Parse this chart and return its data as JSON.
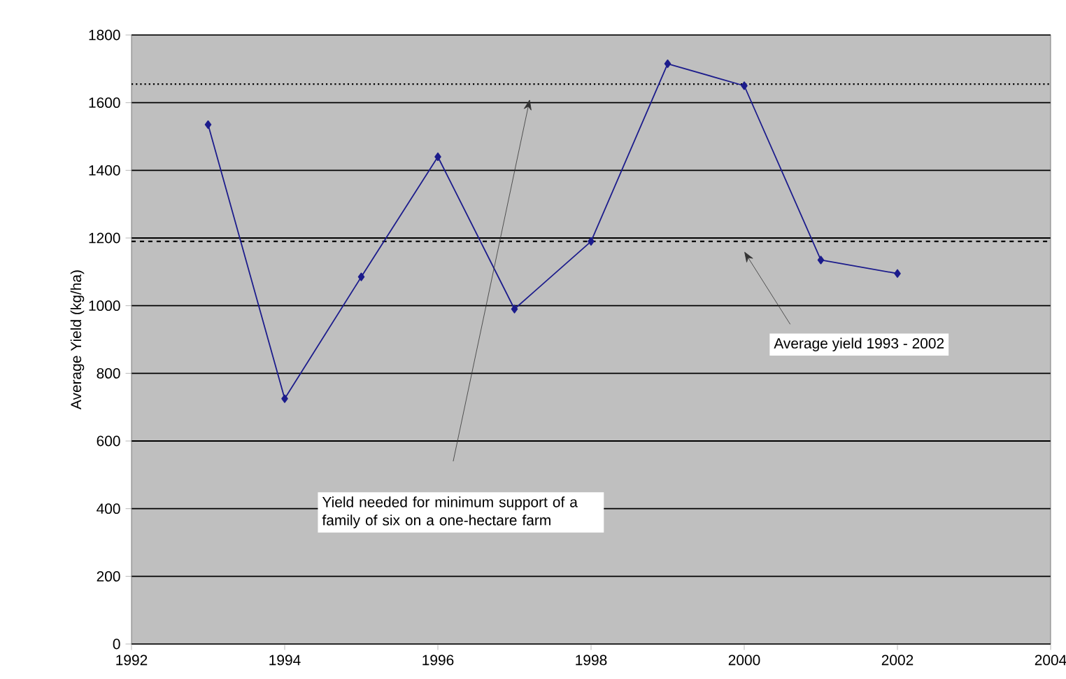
{
  "chart_data": {
    "type": "line",
    "ylabel": "Average Yield (kg/ha)",
    "x": [
      1993,
      1994,
      1995,
      1996,
      1997,
      1998,
      1999,
      2000,
      2001,
      2002
    ],
    "series": [
      {
        "color": "#1c1c8c",
        "values": [
          1535,
          725,
          1085,
          1440,
          990,
          1190,
          1715,
          1650,
          1135,
          1095
        ]
      }
    ],
    "xlim": [
      1992,
      2004
    ],
    "xticks": [
      1992,
      1994,
      1996,
      1998,
      2000,
      2002,
      2004
    ],
    "ylim": [
      0,
      1800
    ],
    "yticks": [
      0,
      200,
      400,
      600,
      800,
      1000,
      1200,
      1400,
      1600,
      1800
    ],
    "grid": "y",
    "marker": "diamond",
    "line_style": "solid",
    "ref_lines": [
      {
        "axis": "y",
        "value": 1655,
        "color": "#000000",
        "line_style": "dotted"
      },
      {
        "axis": "y",
        "value": 1190,
        "color": "#000000",
        "line_style": "dashed"
      }
    ],
    "annotations": [
      "Yield needed for minimum support of a family of six on a one-hectare farm",
      "Average yield 1993 - 2002"
    ]
  }
}
